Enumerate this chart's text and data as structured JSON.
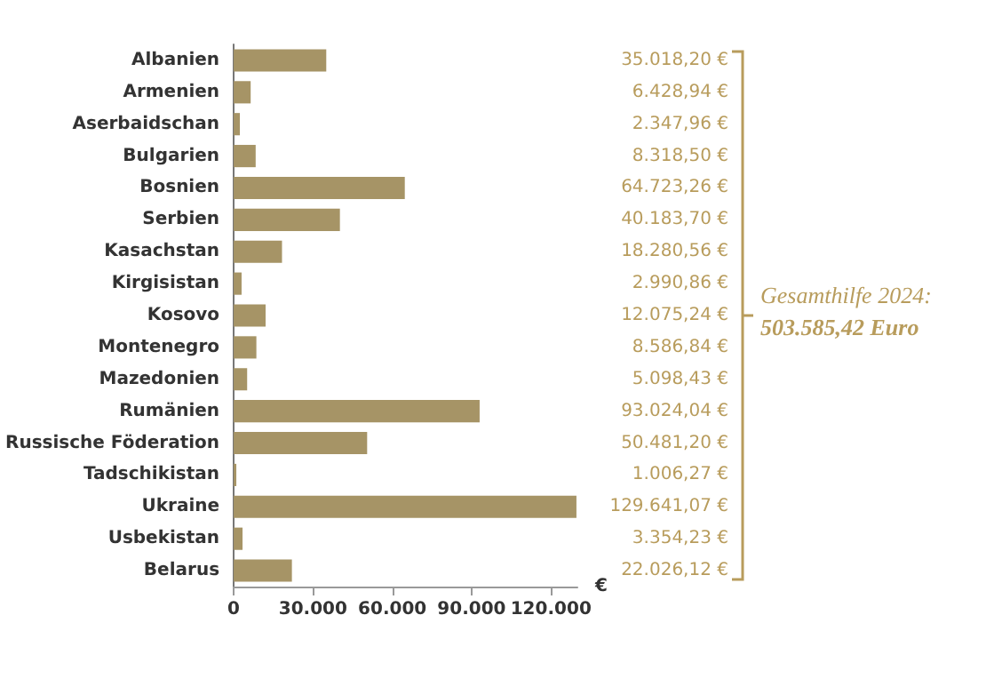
{
  "chart_data": {
    "type": "bar",
    "orientation": "horizontal",
    "categories": [
      "Albanien",
      "Armenien",
      "Aserbaidschan",
      "Bulgarien",
      "Bosnien",
      "Serbien",
      "Kasachstan",
      "Kirgisistan",
      "Kosovo",
      "Montenegro",
      "Mazedonien",
      "Rumänien",
      "Russische Föderation",
      "Tadschikistan",
      "Ukraine",
      "Usbekistan",
      "Belarus"
    ],
    "values": [
      35018.2,
      6428.94,
      2347.96,
      8318.5,
      64723.26,
      40183.7,
      18280.56,
      2990.86,
      12075.24,
      8586.84,
      5098.43,
      93024.04,
      50481.2,
      1006.27,
      129641.07,
      3354.23,
      22026.12
    ],
    "value_labels": [
      "35.018,20 €",
      "6.428,94 €",
      "2.347,96 €",
      "8.318,50 €",
      "64.723,26 €",
      "40.183,70 €",
      "18.280,56 €",
      "2.990,86 €",
      "12.075,24 €",
      "8.586,84 €",
      "5.098,43 €",
      "93.024,04 €",
      "50.481,20 €",
      "1.006,27 €",
      "129.641,07 €",
      "3.354,23 €",
      "22.026,12 €"
    ],
    "color": "#a69466",
    "xlabel": "€",
    "xlim": [
      0,
      130000
    ],
    "xticks": [
      {
        "value": 0,
        "label": "0"
      },
      {
        "value": 30000,
        "label": "30.000"
      },
      {
        "value": 60000,
        "label": "60.000"
      },
      {
        "value": 90000,
        "label": "90.000"
      },
      {
        "value": 120000,
        "label": "120.000"
      }
    ],
    "annotations": [
      "Gesamthilfe 2024:",
      "503.585,42 Euro"
    ]
  }
}
